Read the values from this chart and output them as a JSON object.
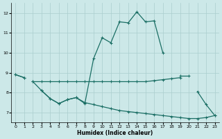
{
  "xlabel": "Humidex (Indice chaleur)",
  "x": [
    0,
    1,
    2,
    3,
    4,
    5,
    6,
    7,
    8,
    9,
    10,
    11,
    12,
    13,
    14,
    15,
    16,
    17,
    18,
    19,
    20,
    21,
    22,
    23
  ],
  "line_main": [
    8.9,
    8.75,
    null,
    8.1,
    7.7,
    7.45,
    7.65,
    7.75,
    7.45,
    9.7,
    10.75,
    10.5,
    11.55,
    11.5,
    12.05,
    11.55,
    11.6,
    10.0,
    null,
    null,
    null,
    8.05,
    7.4,
    6.85
  ],
  "line_upper": [
    8.9,
    8.75,
    null,
    null,
    null,
    null,
    null,
    null,
    null,
    null,
    null,
    null,
    null,
    null,
    null,
    null,
    null,
    null,
    null,
    8.85,
    8.85,
    null,
    null,
    null
  ],
  "line_mid_flat": [
    null,
    null,
    8.55,
    8.55,
    8.55,
    8.55,
    8.55,
    8.55,
    8.55,
    8.55,
    8.55,
    8.55,
    8.55,
    8.55,
    8.55,
    8.55,
    8.6,
    8.65,
    8.7,
    8.75,
    null,
    null,
    null,
    null
  ],
  "line_descend": [
    null,
    null,
    8.55,
    8.1,
    7.7,
    7.45,
    7.65,
    7.75,
    7.5,
    7.4,
    7.3,
    7.2,
    7.1,
    7.05,
    7.0,
    6.95,
    6.9,
    6.85,
    6.8,
    6.75,
    6.7,
    6.7,
    6.75,
    6.85
  ],
  "bg_color": "#cce8e8",
  "grid_color": "#aacece",
  "line_color": "#1a6e64",
  "ylim": [
    6.5,
    12.5
  ],
  "xlim": [
    -0.5,
    23.5
  ],
  "yticks": [
    7,
    8,
    9,
    10,
    11,
    12
  ],
  "xticks": [
    0,
    1,
    2,
    3,
    4,
    5,
    6,
    7,
    8,
    9,
    10,
    11,
    12,
    13,
    14,
    15,
    16,
    17,
    18,
    19,
    20,
    21,
    22,
    23
  ]
}
